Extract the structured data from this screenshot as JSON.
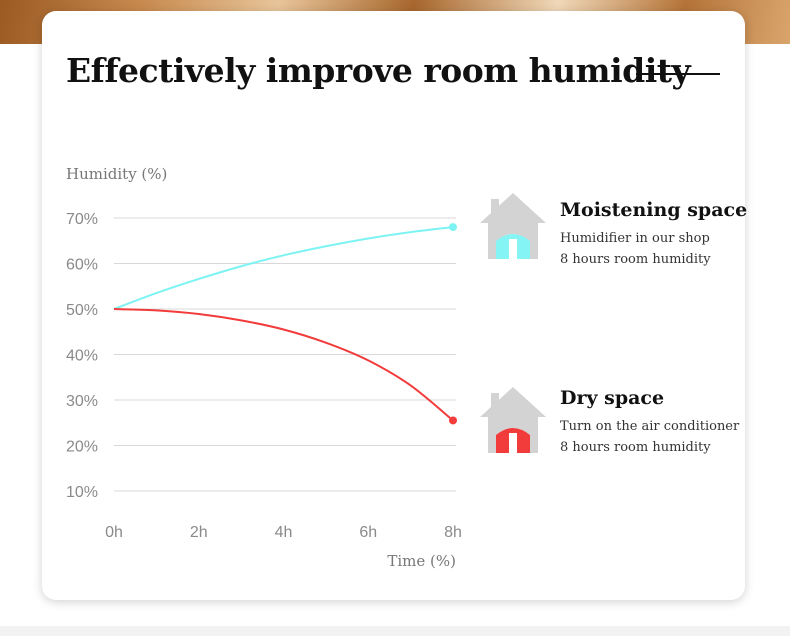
{
  "title": "Effectively improve room humidity",
  "chart_data": {
    "type": "line",
    "ylabel": "Humidity (%)",
    "xlabel": "Time (%)",
    "x_ticks": [
      "0h",
      "2h",
      "4h",
      "6h",
      "8h"
    ],
    "y_ticks": [
      "70%",
      "60%",
      "50%",
      "40%",
      "30%",
      "20%",
      "10%"
    ],
    "ylim": [
      10,
      70
    ],
    "xlim": [
      0,
      8
    ],
    "grid": true,
    "series": [
      {
        "name": "Moistening space",
        "color": "#7df3f3",
        "x": [
          0,
          1,
          2,
          3,
          4,
          5,
          6,
          7,
          8
        ],
        "y": [
          50,
          53.5,
          56.6,
          59.4,
          61.8,
          63.8,
          65.5,
          66.9,
          68
        ]
      },
      {
        "name": "Dry space",
        "color": "#f23b3b",
        "x": [
          0,
          1,
          2,
          3,
          4,
          5,
          6,
          7,
          8
        ],
        "y": [
          50,
          49.7,
          48.9,
          47.5,
          45.5,
          42.6,
          38.7,
          33.2,
          25.5
        ]
      }
    ]
  },
  "legend": {
    "moist": {
      "title": "Moistening space",
      "line1": "Humidifier in our shop",
      "line2": "8 hours room humidity",
      "icon": "house-icon",
      "fill_color": "#7df3f3"
    },
    "dry": {
      "title": "Dry space",
      "line1": "Turn on the air conditioner",
      "line2": "8 hours room humidity",
      "icon": "house-icon",
      "fill_color": "#f23b3b"
    }
  }
}
